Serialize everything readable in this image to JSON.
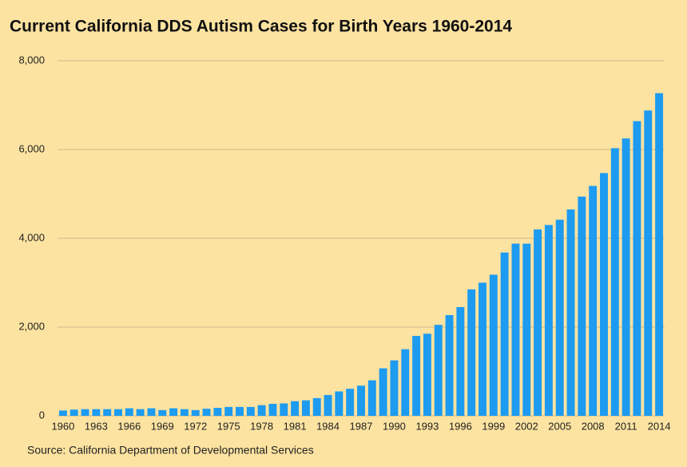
{
  "chart_data": {
    "type": "bar",
    "title": "Current California DDS Autism Cases for Birth Years 1960-2014",
    "source": "Source: California Department of Developmental Services",
    "categories": [
      "1960",
      null,
      null,
      "1963",
      null,
      null,
      "1966",
      null,
      null,
      "1969",
      null,
      null,
      "1972",
      null,
      null,
      "1975",
      null,
      null,
      "1978",
      null,
      null,
      "1981",
      null,
      null,
      "1984",
      null,
      null,
      "1987",
      null,
      null,
      "1990",
      null,
      null,
      "1993",
      null,
      null,
      "1996",
      null,
      null,
      "1999",
      null,
      null,
      "2002",
      null,
      null,
      "2005",
      null,
      null,
      "2008",
      null,
      null,
      "2011",
      null,
      null,
      "2014"
    ],
    "values": [
      120,
      140,
      150,
      150,
      150,
      150,
      170,
      150,
      170,
      130,
      170,
      150,
      130,
      160,
      180,
      200,
      200,
      200,
      240,
      270,
      280,
      330,
      350,
      400,
      470,
      550,
      610,
      680,
      800,
      1070,
      1250,
      1500,
      1800,
      1850,
      2050,
      2270,
      2450,
      2850,
      3000,
      3180,
      3680,
      3880,
      3880,
      4200,
      4300,
      4420,
      4650,
      4940,
      5180,
      5470,
      6030,
      6250,
      6640,
      6880,
      7270
    ],
    "color": "#1d9bf0",
    "ylim": [
      0,
      8000
    ],
    "yticks": [
      0,
      {
        "value": 2000,
        "label": "2,000"
      },
      {
        "value": 4000,
        "label": "4,000"
      },
      {
        "value": 6000,
        "label": "6,000"
      },
      {
        "value": 8000,
        "label": "8,000"
      }
    ],
    "grid": true
  }
}
